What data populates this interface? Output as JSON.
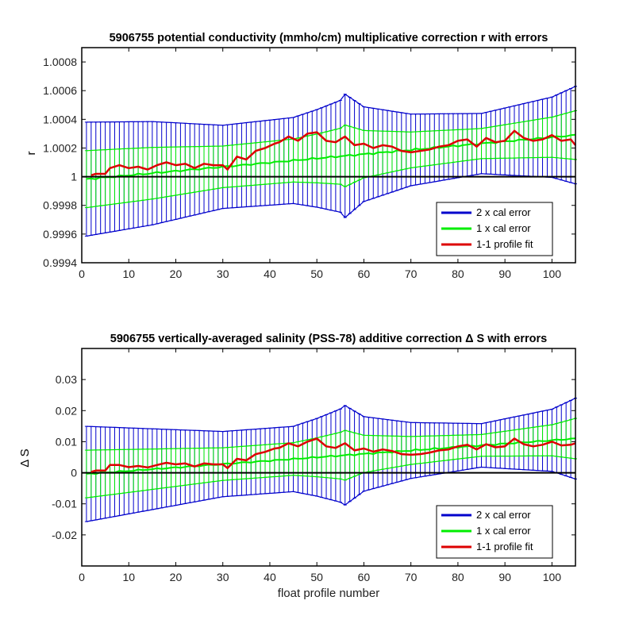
{
  "chart_data": [
    {
      "type": "line",
      "title": "5906755 potential conductivity (mmho/cm) multiplicative correction r with errors",
      "xlabel": "",
      "ylabel": "r",
      "xlim": [
        0,
        105
      ],
      "ylim": [
        0.9994,
        1.0009
      ],
      "xticks": [
        0,
        10,
        20,
        30,
        40,
        50,
        60,
        70,
        80,
        90,
        100
      ],
      "xtick_labels": [
        "0",
        "10",
        "20",
        "30",
        "40",
        "50",
        "60",
        "70",
        "80",
        "90",
        "100"
      ],
      "yticks": [
        0.9994,
        0.9996,
        0.9998,
        1.0,
        1.0002,
        1.0004,
        1.0006,
        1.0008
      ],
      "ytick_labels": [
        "0.9994",
        "0.9996",
        "0.9998",
        "1",
        "1.0002",
        "1.0004",
        "1.0006",
        "1.0008"
      ],
      "reference_line": 1.0,
      "legend_position": "bottom-right",
      "legend": [
        "2 x cal error",
        "1 x cal error",
        "1-1 profile fit"
      ],
      "colors": {
        "two_sigma": "#0000cc",
        "one_sigma": "#00ee00",
        "fit": "#dd0000",
        "reference": "#000000"
      },
      "series": [
        {
          "name": "2 x cal error",
          "kind": "errorbar-envelope",
          "center_knots_x": [
            0,
            105
          ],
          "center_knots_y": [
            0.99998,
            1.00029
          ],
          "halfwidth_knots_x": [
            0,
            15,
            30,
            45,
            50,
            55,
            56,
            60,
            70,
            85,
            100,
            105
          ],
          "halfwidth_knots_y": [
            0.0004,
            0.00036,
            0.00029,
            0.0003,
            0.00034,
            0.00039,
            0.00043,
            0.00033,
            0.00025,
            0.00021,
            0.00028,
            0.00034
          ]
        },
        {
          "name": "1 x cal error",
          "kind": "errorbar-envelope",
          "center_knots_x": [
            0,
            105
          ],
          "center_knots_y": [
            0.99998,
            1.00029
          ],
          "halfwidth_knots_x": [
            0,
            15,
            30,
            45,
            50,
            55,
            56,
            60,
            70,
            85,
            100,
            105
          ],
          "halfwidth_knots_y": [
            0.0002,
            0.00018,
            0.000145,
            0.00015,
            0.00017,
            0.000195,
            0.000215,
            0.000165,
            0.000125,
            0.000105,
            0.00014,
            0.00017
          ]
        },
        {
          "name": "1-1 profile fit",
          "x_knots": [
            2,
            3,
            5,
            6,
            8,
            10,
            12,
            14,
            16,
            18,
            20,
            22,
            24,
            26,
            28,
            30,
            31,
            33,
            35,
            37,
            39,
            41,
            42,
            44,
            46,
            48,
            50,
            52,
            54,
            56,
            58,
            60,
            62,
            64,
            66,
            68,
            70,
            72,
            74,
            76,
            78,
            80,
            82,
            84,
            86,
            88,
            90,
            92,
            94,
            96,
            98,
            100,
            102,
            104,
            105
          ],
          "y_knots": [
            1.00001,
            1.00002,
            1.00002,
            1.00006,
            1.00008,
            1.00006,
            1.00007,
            1.00005,
            1.00008,
            1.0001,
            1.00008,
            1.00009,
            1.00006,
            1.00009,
            1.00008,
            1.00008,
            1.00005,
            1.00014,
            1.00012,
            1.00018,
            1.0002,
            1.00023,
            1.00024,
            1.00028,
            1.00025,
            1.0003,
            1.00031,
            1.00025,
            1.00024,
            1.00028,
            1.00022,
            1.00023,
            1.0002,
            1.00022,
            1.00021,
            1.00018,
            1.00017,
            1.00018,
            1.00019,
            1.00021,
            1.00022,
            1.00025,
            1.00026,
            1.00021,
            1.00027,
            1.00024,
            1.00025,
            1.00032,
            1.00027,
            1.00025,
            1.00026,
            1.00029,
            1.00025,
            1.00026,
            1.00022
          ]
        }
      ]
    },
    {
      "type": "line",
      "title": "5906755 vertically-averaged salinity (PSS-78) additive correction Δ S with errors",
      "xlabel": "float profile number",
      "ylabel": "Δ S",
      "xlim": [
        0,
        105
      ],
      "ylim": [
        -0.03,
        0.04
      ],
      "xticks": [
        0,
        10,
        20,
        30,
        40,
        50,
        60,
        70,
        80,
        90,
        100
      ],
      "xtick_labels": [
        "0",
        "10",
        "20",
        "30",
        "40",
        "50",
        "60",
        "70",
        "80",
        "90",
        "100"
      ],
      "yticks": [
        -0.02,
        -0.01,
        0,
        0.01,
        0.02,
        0.03
      ],
      "ytick_labels": [
        "-0.02",
        "-0.01",
        "0",
        "0.01",
        "0.02",
        "0.03"
      ],
      "reference_line": 0,
      "legend_position": "bottom-right",
      "legend": [
        "2 x cal error",
        "1 x cal error",
        "1-1 profile fit"
      ],
      "colors": {
        "two_sigma": "#0000cc",
        "one_sigma": "#00ee00",
        "fit": "#dd0000",
        "reference": "#000000"
      },
      "series": [
        {
          "name": "2 x cal error",
          "kind": "errorbar-envelope",
          "center_knots_x": [
            0,
            105
          ],
          "center_knots_y": [
            -0.0005,
            0.011
          ],
          "halfwidth_knots_x": [
            0,
            15,
            30,
            45,
            50,
            55,
            56,
            60,
            70,
            85,
            100,
            105
          ],
          "halfwidth_knots_y": [
            0.0155,
            0.013,
            0.0105,
            0.0105,
            0.0125,
            0.015,
            0.016,
            0.012,
            0.009,
            0.007,
            0.01,
            0.013
          ]
        },
        {
          "name": "1 x cal error",
          "kind": "errorbar-envelope",
          "center_knots_x": [
            0,
            105
          ],
          "center_knots_y": [
            -0.0005,
            0.011
          ],
          "halfwidth_knots_x": [
            0,
            15,
            30,
            45,
            50,
            55,
            56,
            60,
            70,
            85,
            100,
            105
          ],
          "halfwidth_knots_y": [
            0.00775,
            0.0065,
            0.00525,
            0.00525,
            0.00625,
            0.0075,
            0.008,
            0.006,
            0.0045,
            0.0035,
            0.005,
            0.0065
          ]
        },
        {
          "name": "1-1 profile fit",
          "x_knots": [
            2,
            3,
            5,
            6,
            8,
            10,
            12,
            14,
            16,
            18,
            20,
            22,
            24,
            26,
            28,
            30,
            31,
            33,
            35,
            37,
            39,
            41,
            42,
            44,
            46,
            48,
            50,
            52,
            54,
            56,
            58,
            60,
            62,
            64,
            66,
            68,
            70,
            72,
            74,
            76,
            78,
            80,
            82,
            84,
            86,
            88,
            90,
            92,
            94,
            96,
            98,
            100,
            102,
            104,
            105
          ],
          "y_knots": [
            0.0003,
            0.0007,
            0.0007,
            0.0025,
            0.0025,
            0.0018,
            0.0022,
            0.0017,
            0.0025,
            0.0032,
            0.0027,
            0.003,
            0.002,
            0.003,
            0.0027,
            0.0027,
            0.0015,
            0.0045,
            0.004,
            0.006,
            0.0067,
            0.0078,
            0.008,
            0.0095,
            0.0085,
            0.01,
            0.011,
            0.0085,
            0.008,
            0.0095,
            0.0072,
            0.0078,
            0.0068,
            0.0075,
            0.007,
            0.006,
            0.0058,
            0.006,
            0.0065,
            0.0072,
            0.0075,
            0.0085,
            0.009,
            0.0075,
            0.0092,
            0.0082,
            0.0085,
            0.011,
            0.0092,
            0.0085,
            0.009,
            0.01,
            0.0088,
            0.009,
            0.0095
          ]
        }
      ]
    }
  ]
}
